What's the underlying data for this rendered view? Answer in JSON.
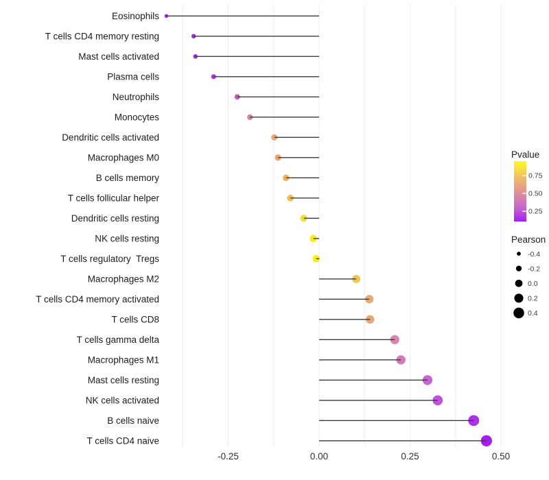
{
  "chart_data": {
    "type": "lollipop",
    "subtype": "dot-and-stem correlation plot",
    "title": "",
    "xlabel": "",
    "ylabel": "",
    "x_ticks": [
      "-0.25",
      "0.00",
      "0.25",
      "0.50"
    ],
    "x_tick_values": [
      -0.25,
      0.0,
      0.25,
      0.5
    ],
    "xlim": [
      -0.43,
      0.52
    ],
    "grid": "vertical only, step 0.125",
    "grid_color": "#EDEDED",
    "stem_color": "#3a3a3a",
    "points": [
      {
        "label": "Eosinophils",
        "pearson": -0.42,
        "color": "#A228E4"
      },
      {
        "label": "T cells CD4 memory resting",
        "pearson": -0.345,
        "color": "#A02BDA"
      },
      {
        "label": "Mast cells activated",
        "pearson": -0.34,
        "color": "#A02BDA"
      },
      {
        "label": "Plasma cells",
        "pearson": -0.29,
        "color": "#AC3AD0"
      },
      {
        "label": "Neutrophils",
        "pearson": -0.225,
        "color": "#BC62AE"
      },
      {
        "label": "Monocytes",
        "pearson": -0.19,
        "color": "#D9849B"
      },
      {
        "label": "Dendritic cells activated",
        "pearson": -0.123,
        "color": "#E7A877"
      },
      {
        "label": "Macrophages M0",
        "pearson": -0.113,
        "color": "#E7A672"
      },
      {
        "label": "B cells memory",
        "pearson": -0.091,
        "color": "#EDB35C"
      },
      {
        "label": "T cells follicular helper",
        "pearson": -0.079,
        "color": "#EEBD54"
      },
      {
        "label": "Dendritic cells resting",
        "pearson": -0.042,
        "color": "#F1DC3A"
      },
      {
        "label": "NK cells resting",
        "pearson": -0.016,
        "color": "#F4EC1E"
      },
      {
        "label": "T cells regulatory  Tregs",
        "pearson": -0.008,
        "color": "#F5EF16"
      },
      {
        "label": "Macrophages M2",
        "pearson": 0.102,
        "color": "#EEC84E"
      },
      {
        "label": "T cells CD4 memory activated",
        "pearson": 0.138,
        "color": "#E7AB72"
      },
      {
        "label": "T cells CD8",
        "pearson": 0.14,
        "color": "#E8A876"
      },
      {
        "label": "T cells gamma delta",
        "pearson": 0.208,
        "color": "#DA87AE"
      },
      {
        "label": "Macrophages M1",
        "pearson": 0.225,
        "color": "#D37ABC"
      },
      {
        "label": "Mast cells resting",
        "pearson": 0.298,
        "color": "#C763D2"
      },
      {
        "label": "NK cells activated",
        "pearson": 0.326,
        "color": "#BF52DC"
      },
      {
        "label": "B cells naive",
        "pearson": 0.425,
        "color": "#AB30E6"
      },
      {
        "label": "T cells CD4 naive",
        "pearson": 0.46,
        "color": "#A51EEE"
      }
    ],
    "legend_pvalue": {
      "title": "Pvalue",
      "ticks": [
        "0.75",
        "0.50",
        "0.25"
      ],
      "gradient_top_to_bottom": [
        "#FCF926",
        "#EFBE63",
        "#E0909A",
        "#C566CF",
        "#A41EF2"
      ]
    },
    "legend_pearson": {
      "title": "Pearson",
      "sizes": [
        "-0.4",
        "-0.2",
        "0.0",
        "0.2",
        "0.4"
      ],
      "size_values": [
        -0.4,
        -0.2,
        0.0,
        0.2,
        0.4
      ],
      "dot_color": "#000000"
    }
  }
}
